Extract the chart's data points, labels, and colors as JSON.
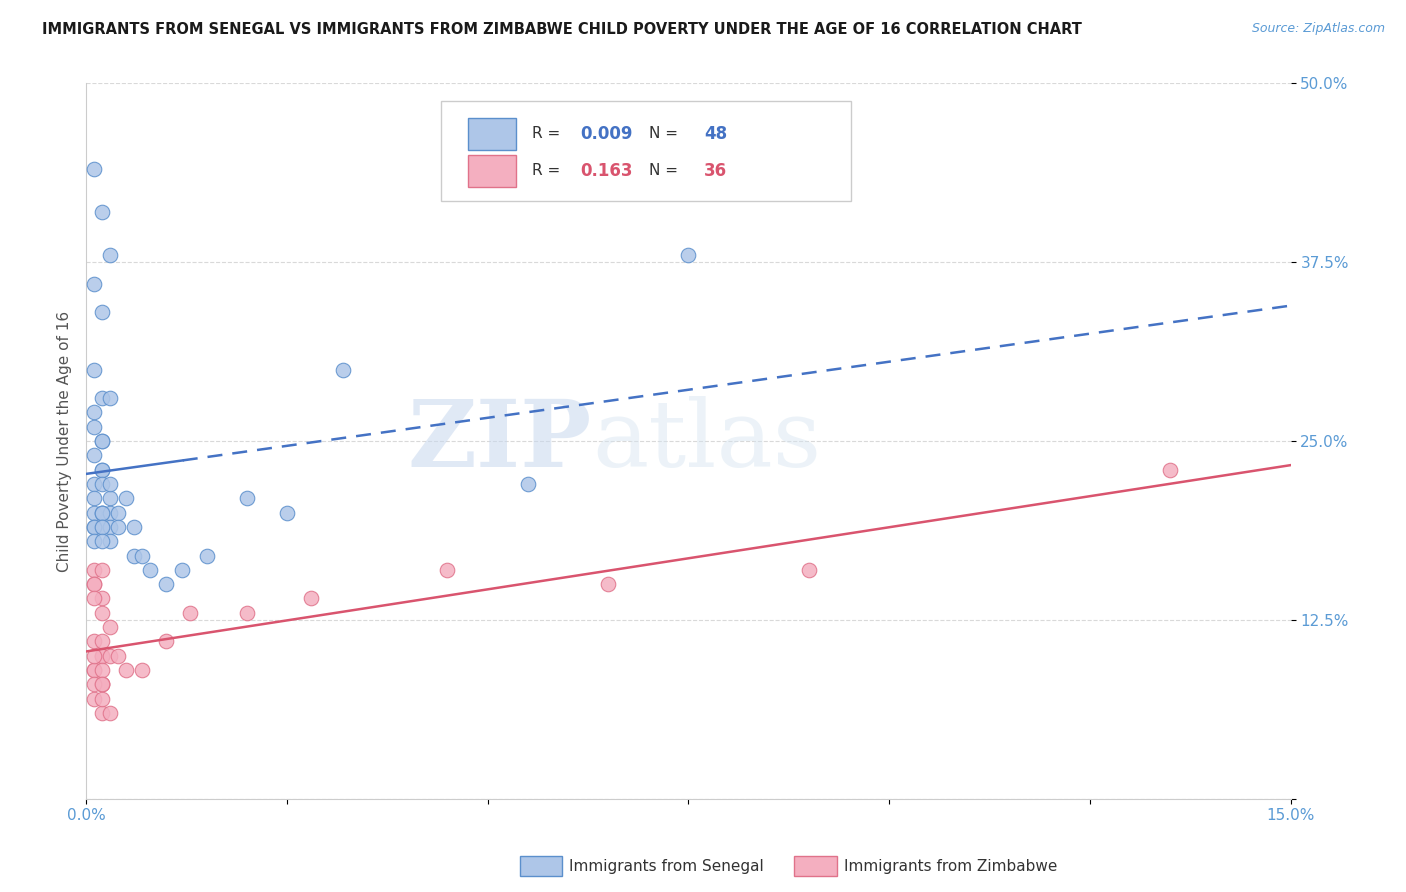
{
  "title": "IMMIGRANTS FROM SENEGAL VS IMMIGRANTS FROM ZIMBABWE CHILD POVERTY UNDER THE AGE OF 16 CORRELATION CHART",
  "source_text": "Source: ZipAtlas.com",
  "ylabel": "Child Poverty Under the Age of 16",
  "xlim": [
    0.0,
    0.15
  ],
  "ylim": [
    0.0,
    0.5
  ],
  "ytick_positions": [
    0.0,
    0.125,
    0.25,
    0.375,
    0.5
  ],
  "ytick_labels": [
    "",
    "12.5%",
    "25.0%",
    "37.5%",
    "50.0%"
  ],
  "watermark_zip": "ZIP",
  "watermark_atlas": "atlas",
  "senegal_R": "0.009",
  "senegal_N": 48,
  "zimbabwe_R": "0.163",
  "zimbabwe_N": 36,
  "senegal_color": "#aec6e8",
  "zimbabwe_color": "#f4afc0",
  "senegal_edge_color": "#5b8fcc",
  "zimbabwe_edge_color": "#e0728a",
  "senegal_line_color": "#4472c4",
  "zimbabwe_line_color": "#d9546e",
  "grid_color": "#d0d0d0",
  "background_color": "#ffffff",
  "senegal_x": [
    0.001,
    0.002,
    0.003,
    0.001,
    0.002,
    0.001,
    0.002,
    0.003,
    0.001,
    0.001,
    0.002,
    0.002,
    0.001,
    0.002,
    0.002,
    0.001,
    0.002,
    0.001,
    0.003,
    0.002,
    0.001,
    0.002,
    0.003,
    0.002,
    0.001,
    0.003,
    0.002,
    0.001,
    0.003,
    0.002,
    0.001,
    0.003,
    0.002,
    0.004,
    0.004,
    0.005,
    0.006,
    0.006,
    0.007,
    0.008,
    0.01,
    0.012,
    0.015,
    0.02,
    0.025,
    0.032,
    0.055,
    0.075
  ],
  "senegal_y": [
    0.44,
    0.41,
    0.38,
    0.36,
    0.34,
    0.3,
    0.28,
    0.28,
    0.27,
    0.26,
    0.25,
    0.25,
    0.24,
    0.23,
    0.23,
    0.22,
    0.22,
    0.21,
    0.21,
    0.2,
    0.2,
    0.2,
    0.2,
    0.2,
    0.19,
    0.22,
    0.19,
    0.19,
    0.19,
    0.19,
    0.18,
    0.18,
    0.18,
    0.2,
    0.19,
    0.21,
    0.17,
    0.19,
    0.17,
    0.16,
    0.15,
    0.16,
    0.17,
    0.21,
    0.2,
    0.3,
    0.22,
    0.38
  ],
  "zimbabwe_x": [
    0.001,
    0.001,
    0.002,
    0.001,
    0.002,
    0.001,
    0.002,
    0.001,
    0.002,
    0.002,
    0.001,
    0.002,
    0.001,
    0.002,
    0.001,
    0.002,
    0.001,
    0.002,
    0.001,
    0.002,
    0.003,
    0.002,
    0.003,
    0.002,
    0.003,
    0.004,
    0.005,
    0.007,
    0.01,
    0.013,
    0.02,
    0.028,
    0.045,
    0.065,
    0.09,
    0.135
  ],
  "zimbabwe_y": [
    0.16,
    0.15,
    0.14,
    0.15,
    0.16,
    0.14,
    0.13,
    0.11,
    0.1,
    0.1,
    0.09,
    0.08,
    0.09,
    0.08,
    0.07,
    0.06,
    0.08,
    0.07,
    0.1,
    0.11,
    0.12,
    0.09,
    0.1,
    0.08,
    0.06,
    0.1,
    0.09,
    0.09,
    0.11,
    0.13,
    0.13,
    0.14,
    0.16,
    0.15,
    0.16,
    0.23
  ]
}
